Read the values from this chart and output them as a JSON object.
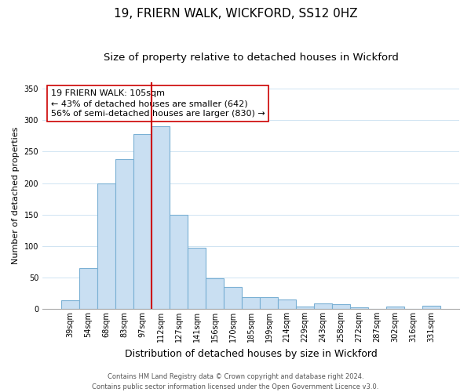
{
  "title": "19, FRIERN WALK, WICKFORD, SS12 0HZ",
  "subtitle": "Size of property relative to detached houses in Wickford",
  "xlabel": "Distribution of detached houses by size in Wickford",
  "ylabel": "Number of detached properties",
  "bar_labels": [
    "39sqm",
    "54sqm",
    "68sqm",
    "83sqm",
    "97sqm",
    "112sqm",
    "127sqm",
    "141sqm",
    "156sqm",
    "170sqm",
    "185sqm",
    "199sqm",
    "214sqm",
    "229sqm",
    "243sqm",
    "258sqm",
    "272sqm",
    "287sqm",
    "302sqm",
    "316sqm",
    "331sqm"
  ],
  "bar_values": [
    13,
    65,
    200,
    238,
    278,
    290,
    150,
    97,
    49,
    35,
    18,
    18,
    15,
    4,
    8,
    7,
    2,
    0,
    4,
    0,
    5
  ],
  "bar_color": "#c9dff2",
  "bar_edge_color": "#7ab0d4",
  "vline_x_index": 5,
  "vline_color": "#cc0000",
  "ylim": [
    0,
    360
  ],
  "yticks": [
    0,
    50,
    100,
    150,
    200,
    250,
    300,
    350
  ],
  "annotation_title": "19 FRIERN WALK: 105sqm",
  "annotation_line1": "← 43% of detached houses are smaller (642)",
  "annotation_line2": "56% of semi-detached houses are larger (830) →",
  "annotation_box_facecolor": "#ffffff",
  "annotation_box_edgecolor": "#cc0000",
  "footer_line1": "Contains HM Land Registry data © Crown copyright and database right 2024.",
  "footer_line2": "Contains public sector information licensed under the Open Government Licence v3.0.",
  "title_fontsize": 11,
  "subtitle_fontsize": 9.5,
  "xlabel_fontsize": 9,
  "ylabel_fontsize": 8,
  "tick_fontsize": 7,
  "annotation_fontsize": 8,
  "footer_fontsize": 6
}
